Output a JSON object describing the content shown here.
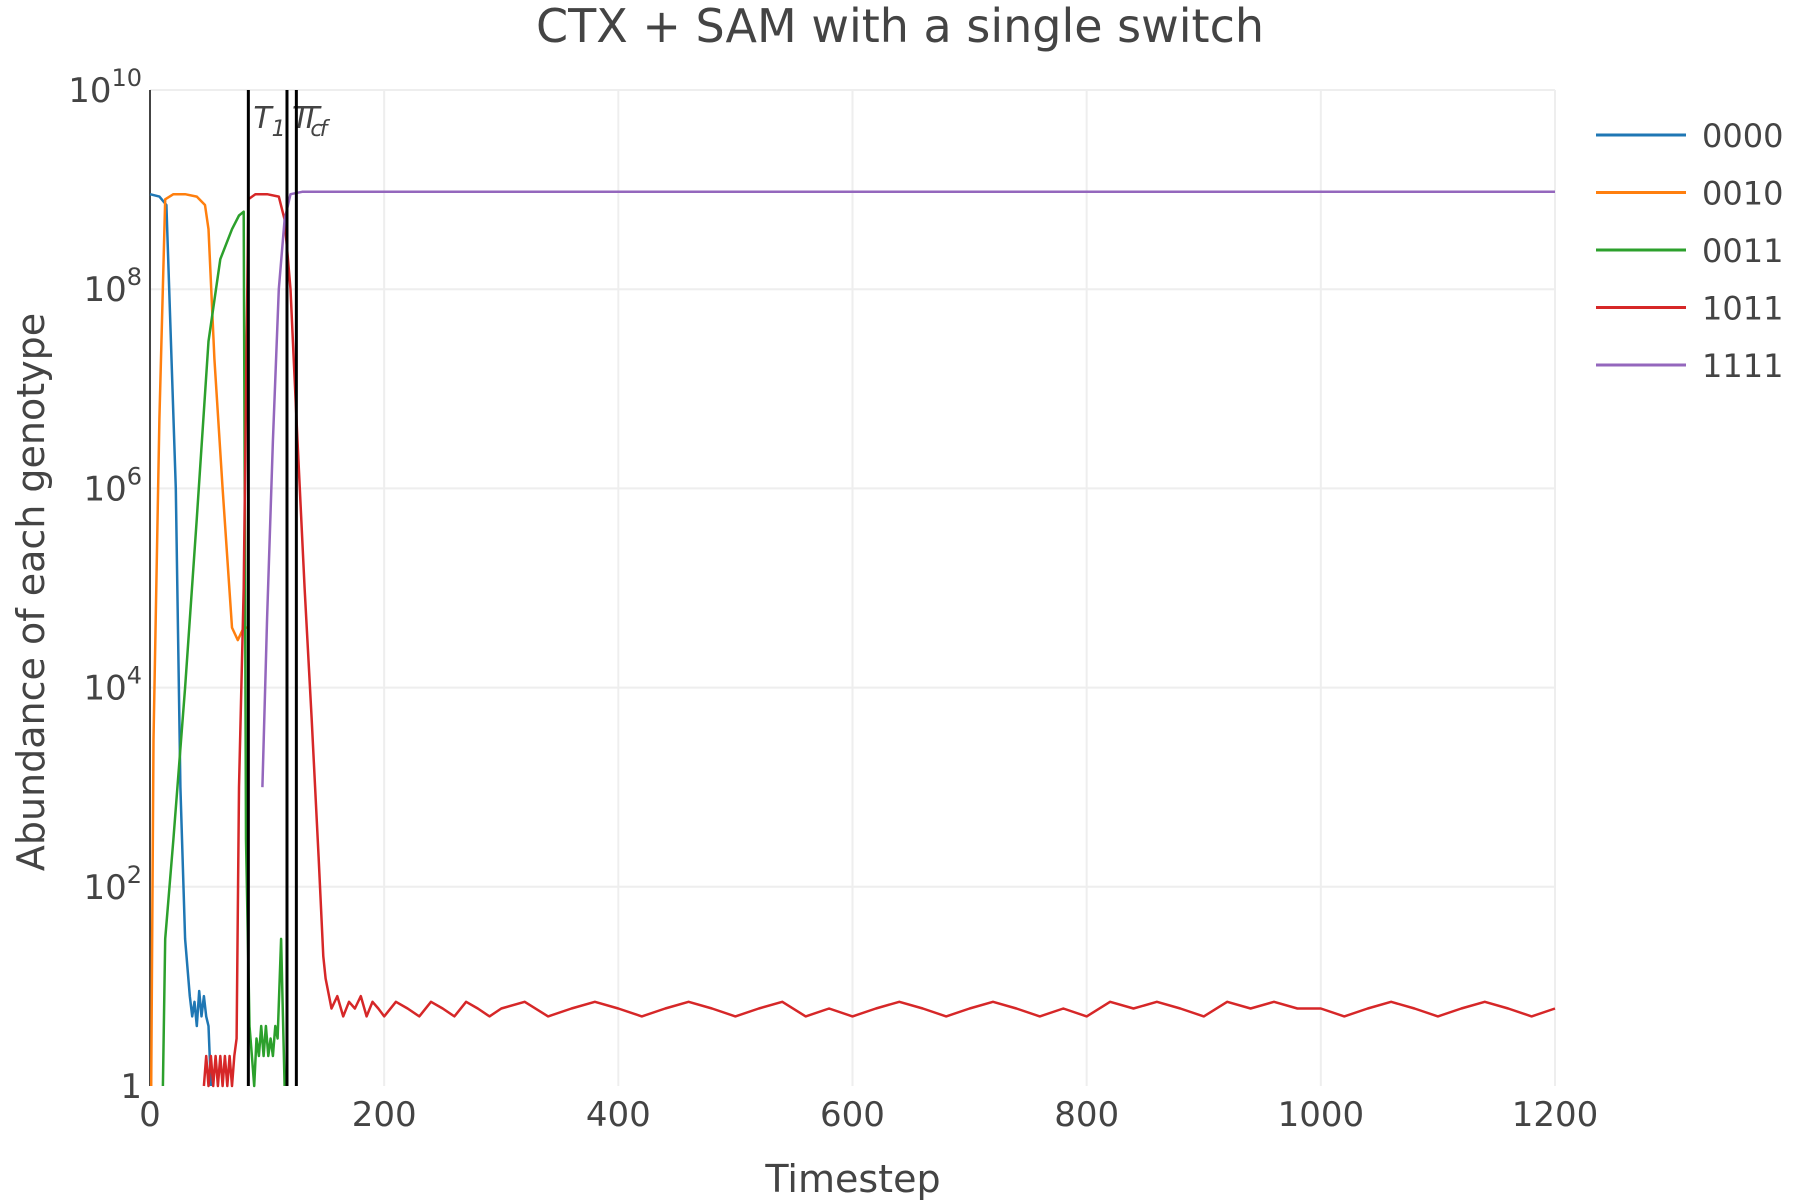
{
  "chart_data": {
    "type": "line",
    "title": "CTX + SAM with a single switch",
    "xlabel": "Timestep",
    "ylabel": "Abundance of each genotype",
    "x_range": [
      0,
      1200
    ],
    "y_scale": "log",
    "y_range": [
      1,
      10000000000
    ],
    "x_ticks": [
      {
        "value": 0,
        "label": "0"
      },
      {
        "value": 200,
        "label": "200"
      },
      {
        "value": 400,
        "label": "400"
      },
      {
        "value": 600,
        "label": "600"
      },
      {
        "value": 800,
        "label": "800"
      },
      {
        "value": 1000,
        "label": "1000"
      },
      {
        "value": 1200,
        "label": "1200"
      }
    ],
    "y_ticks": [
      {
        "value": 1,
        "base": "1",
        "exp": ""
      },
      {
        "value": 100,
        "base": "10",
        "exp": "2"
      },
      {
        "value": 10000,
        "base": "10",
        "exp": "4"
      },
      {
        "value": 1000000,
        "base": "10",
        "exp": "6"
      },
      {
        "value": 100000000,
        "base": "10",
        "exp": "8"
      },
      {
        "value": 10000000000,
        "base": "10",
        "exp": "10"
      }
    ],
    "grid": true,
    "legend_position": "top-right",
    "vertical_lines": [
      {
        "x": 84,
        "label_main": "T",
        "label_sub": "1"
      },
      {
        "x": 117,
        "label_main": "T",
        "label_sub": "c"
      },
      {
        "x": 125,
        "label_main": "T",
        "label_sub": "f"
      }
    ],
    "series": [
      {
        "name": "0000",
        "color": "#1f77b4",
        "points": [
          [
            0,
            900000000
          ],
          [
            8,
            850000000
          ],
          [
            14,
            700000000
          ],
          [
            22,
            1000000
          ],
          [
            26,
            1000
          ],
          [
            30,
            30
          ],
          [
            34,
            8
          ],
          [
            36,
            5
          ],
          [
            38,
            7
          ],
          [
            40,
            4
          ],
          [
            42,
            9
          ],
          [
            44,
            5
          ],
          [
            46,
            8
          ],
          [
            48,
            5
          ],
          [
            50,
            4
          ],
          [
            52,
            1
          ]
        ]
      },
      {
        "name": "0010",
        "color": "#ff7f0e",
        "points": [
          [
            1,
            1
          ],
          [
            3,
            3000
          ],
          [
            8,
            5000000
          ],
          [
            13,
            800000000
          ],
          [
            20,
            900000000
          ],
          [
            30,
            900000000
          ],
          [
            40,
            850000000
          ],
          [
            47,
            700000000
          ],
          [
            50,
            400000000
          ],
          [
            55,
            20000000
          ],
          [
            62,
            1000000
          ],
          [
            70,
            40000
          ],
          [
            75,
            30000
          ],
          [
            80,
            40000
          ],
          [
            84,
            40000
          ]
        ]
      },
      {
        "name": "0011",
        "color": "#2ca02c",
        "points": [
          [
            11,
            1
          ],
          [
            13,
            30
          ],
          [
            20,
            300
          ],
          [
            30,
            10000
          ],
          [
            40,
            500000
          ],
          [
            50,
            30000000
          ],
          [
            60,
            200000000
          ],
          [
            70,
            400000000
          ],
          [
            76,
            550000000
          ],
          [
            80,
            600000000
          ],
          [
            82,
            300
          ],
          [
            85,
            4
          ],
          [
            87,
            2
          ],
          [
            89,
            1
          ],
          [
            91,
            3
          ],
          [
            93,
            2
          ],
          [
            95,
            4
          ],
          [
            97,
            2
          ],
          [
            99,
            4
          ],
          [
            101,
            2
          ],
          [
            103,
            3
          ],
          [
            105,
            2
          ],
          [
            107,
            4
          ],
          [
            109,
            3
          ],
          [
            112,
            30
          ],
          [
            115,
            1
          ]
        ]
      },
      {
        "name": "1011",
        "color": "#d62728",
        "points": [
          [
            46,
            1
          ],
          [
            48,
            2
          ],
          [
            50,
            1
          ],
          [
            52,
            2
          ],
          [
            54,
            1
          ],
          [
            56,
            2
          ],
          [
            58,
            1
          ],
          [
            60,
            2
          ],
          [
            62,
            1
          ],
          [
            64,
            2
          ],
          [
            66,
            1
          ],
          [
            68,
            2
          ],
          [
            70,
            1
          ],
          [
            72,
            2
          ],
          [
            74,
            3
          ],
          [
            76,
            1000
          ],
          [
            80,
            100000
          ],
          [
            84,
            800000000
          ],
          [
            90,
            900000000
          ],
          [
            100,
            900000000
          ],
          [
            110,
            850000000
          ],
          [
            115,
            500000000
          ],
          [
            120,
            100000000
          ],
          [
            126,
            3000000
          ],
          [
            132,
            100000
          ],
          [
            138,
            5000
          ],
          [
            144,
            200
          ],
          [
            148,
            20
          ],
          [
            150,
            12
          ],
          [
            155,
            6
          ],
          [
            160,
            8
          ],
          [
            165,
            5
          ],
          [
            170,
            7
          ],
          [
            175,
            6
          ],
          [
            180,
            8
          ],
          [
            185,
            5
          ],
          [
            190,
            7
          ],
          [
            195,
            6
          ],
          [
            200,
            5
          ],
          [
            210,
            7
          ],
          [
            220,
            6
          ],
          [
            230,
            5
          ],
          [
            240,
            7
          ],
          [
            250,
            6
          ],
          [
            260,
            5
          ],
          [
            270,
            7
          ],
          [
            280,
            6
          ],
          [
            290,
            5
          ],
          [
            300,
            6
          ],
          [
            320,
            7
          ],
          [
            340,
            5
          ],
          [
            360,
            6
          ],
          [
            380,
            7
          ],
          [
            400,
            6
          ],
          [
            420,
            5
          ],
          [
            440,
            6
          ],
          [
            460,
            7
          ],
          [
            480,
            6
          ],
          [
            500,
            5
          ],
          [
            520,
            6
          ],
          [
            540,
            7
          ],
          [
            560,
            5
          ],
          [
            580,
            6
          ],
          [
            600,
            5
          ],
          [
            620,
            6
          ],
          [
            640,
            7
          ],
          [
            660,
            6
          ],
          [
            680,
            5
          ],
          [
            700,
            6
          ],
          [
            720,
            7
          ],
          [
            740,
            6
          ],
          [
            760,
            5
          ],
          [
            780,
            6
          ],
          [
            800,
            5
          ],
          [
            820,
            7
          ],
          [
            840,
            6
          ],
          [
            860,
            7
          ],
          [
            880,
            6
          ],
          [
            900,
            5
          ],
          [
            920,
            7
          ],
          [
            940,
            6
          ],
          [
            960,
            7
          ],
          [
            980,
            6
          ],
          [
            1000,
            6
          ],
          [
            1020,
            5
          ],
          [
            1040,
            6
          ],
          [
            1060,
            7
          ],
          [
            1080,
            6
          ],
          [
            1100,
            5
          ],
          [
            1120,
            6
          ],
          [
            1140,
            7
          ],
          [
            1160,
            6
          ],
          [
            1180,
            5
          ],
          [
            1200,
            6
          ]
        ]
      },
      {
        "name": "1111",
        "color": "#9467bd",
        "points": [
          [
            96,
            1000
          ],
          [
            100,
            50000
          ],
          [
            105,
            3000000
          ],
          [
            110,
            100000000
          ],
          [
            115,
            500000000
          ],
          [
            120,
            900000000
          ],
          [
            130,
            950000000
          ],
          [
            150,
            950000000
          ],
          [
            200,
            950000000
          ],
          [
            400,
            950000000
          ],
          [
            600,
            950000000
          ],
          [
            800,
            950000000
          ],
          [
            1000,
            950000000
          ],
          [
            1200,
            950000000
          ]
        ]
      }
    ]
  }
}
